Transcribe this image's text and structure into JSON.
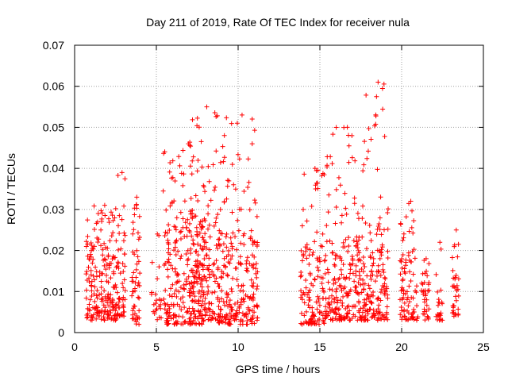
{
  "chart_data": {
    "type": "scatter",
    "title": "Day 211 of 2019, Rate Of TEC Index for receiver nula",
    "xlabel": "GPS time / hours",
    "ylabel": "ROTI / TECUs",
    "xlim": [
      0,
      25
    ],
    "ylim": [
      0,
      0.07
    ],
    "xticks": [
      0,
      5,
      10,
      15,
      20,
      25
    ],
    "yticks": [
      0,
      0.01,
      0.02,
      0.03,
      0.04,
      0.05,
      0.06,
      0.07
    ],
    "xtick_labels": [
      "0",
      "5",
      "10",
      "15",
      "20",
      "25"
    ],
    "ytick_labels": [
      "0",
      "0.01",
      "0.02",
      "0.03",
      "0.04",
      "0.05",
      "0.06",
      "0.07"
    ],
    "grid": true,
    "marker": "+",
    "series_color": "#ff0000",
    "series": [
      {
        "name": "ROTI",
        "clusters": [
          {
            "x": [
              0.7,
              2.6
            ],
            "y": [
              0.003,
              0.022
            ],
            "peak": 0.031,
            "n": 170
          },
          {
            "x": [
              2.6,
              3.1
            ],
            "y": [
              0.004,
              0.024
            ],
            "peak": 0.039,
            "n": 45
          },
          {
            "x": [
              3.5,
              4.0
            ],
            "y": [
              0.002,
              0.025
            ],
            "peak": 0.033,
            "n": 45
          },
          {
            "x": [
              4.7,
              5.3
            ],
            "y": [
              0.003,
              0.01
            ],
            "peak": 0.024,
            "n": 18
          },
          {
            "x": [
              5.4,
              8.0
            ],
            "y": [
              0.002,
              0.026
            ],
            "peak": 0.046,
            "n": 210
          },
          {
            "x": [
              7.0,
              8.8
            ],
            "y": [
              0.003,
              0.03
            ],
            "peak": 0.055,
            "n": 150
          },
          {
            "x": [
              8.8,
              11.2
            ],
            "y": [
              0.002,
              0.025
            ],
            "peak": 0.053,
            "n": 210
          },
          {
            "x": [
              13.8,
              15.3
            ],
            "y": [
              0.002,
              0.022
            ],
            "peak": 0.04,
            "n": 110
          },
          {
            "x": [
              15.3,
              17.6
            ],
            "y": [
              0.003,
              0.024
            ],
            "peak": 0.05,
            "n": 190
          },
          {
            "x": [
              17.6,
              19.2
            ],
            "y": [
              0.003,
              0.027
            ],
            "peak": 0.061,
            "n": 140
          },
          {
            "x": [
              19.9,
              21.0
            ],
            "y": [
              0.003,
              0.02
            ],
            "peak": 0.032,
            "n": 75
          },
          {
            "x": [
              21.2,
              21.7
            ],
            "y": [
              0.003,
              0.014
            ],
            "peak": 0.018,
            "n": 30
          },
          {
            "x": [
              22.1,
              22.5
            ],
            "y": [
              0.003,
              0.009
            ],
            "peak": 0.022,
            "n": 20
          },
          {
            "x": [
              23.1,
              23.5
            ],
            "y": [
              0.004,
              0.016
            ],
            "peak": 0.025,
            "n": 30
          }
        ]
      }
    ]
  }
}
